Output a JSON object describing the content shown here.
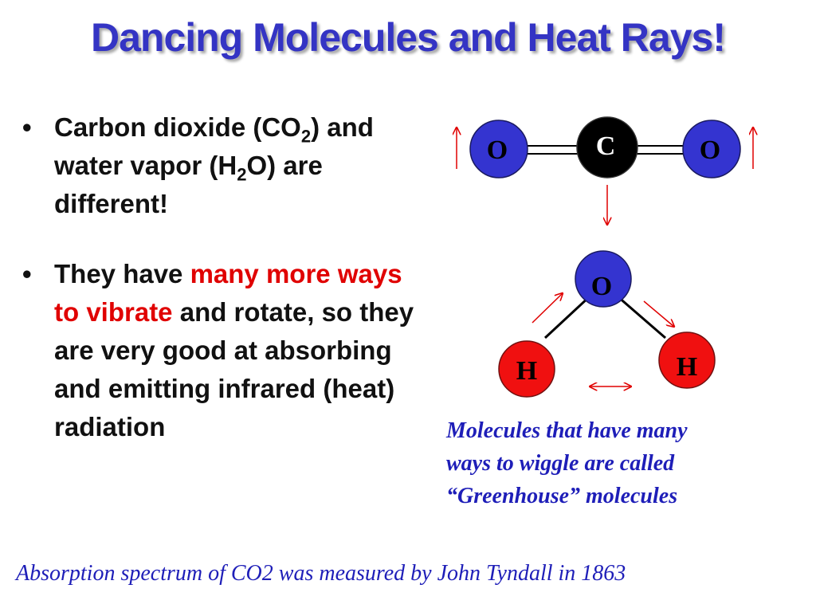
{
  "title": "Dancing Molecules and Heat Rays!",
  "bullets": {
    "b1_pre": "Carbon dioxide (CO",
    "b1_sub1": "2",
    "b1_mid": ") and water vapor (H",
    "b1_sub2": "2",
    "b1_post": "O) are different!",
    "b2_pre": "They have ",
    "b2_highlight": "many more ways to vibrate",
    "b2_post": " and rotate, so they are very good at absorbing and emitting infrared (heat) radiation",
    "marker": "•"
  },
  "co2": {
    "left_atom": "O",
    "center_atom": "C",
    "right_atom": "O"
  },
  "h2o": {
    "top_atom": "O",
    "left_atom": "H",
    "right_atom": "H"
  },
  "caption": {
    "line1": "Molecules that have many",
    "line2": "ways to wiggle are called",
    "line3": "“Greenhouse” molecules"
  },
  "footer": "Absorption spectrum of CO2 was measured by John Tyndall in 1863",
  "colors": {
    "title": "#3434c4",
    "oxygen": "#3434d0",
    "hydrogen": "#f01010",
    "carbon": "#000000",
    "arrow": "#e00000",
    "caption": "#1e1eb8"
  }
}
